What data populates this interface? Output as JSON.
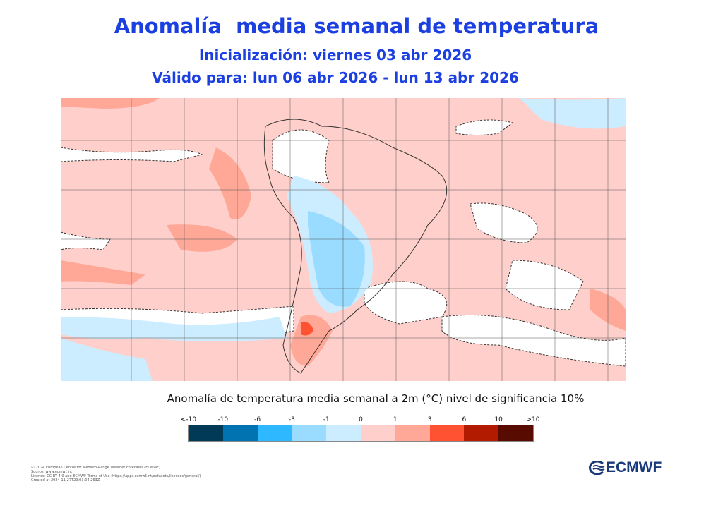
{
  "header": {
    "title": "Anomalía  media semanal de temperatura",
    "init": "Inicialización: viernes 03 abr 2026",
    "valid": "Válido para: lun 06 abr 2026 - lun 13 abr 2026"
  },
  "map": {
    "region": "South America",
    "background_anomaly_color": "#ffd0cb"
  },
  "colorbar": {
    "title": "Anomalía de temperatura media semanal a 2m (°C) nivel de significancia 10%",
    "ticks": [
      "<-10",
      "-10",
      "-6",
      "-3",
      "-1",
      "0",
      "1",
      "3",
      "6",
      "10",
      ">10"
    ],
    "colors": [
      "#003a57",
      "#0073b0",
      "#2eb8ff",
      "#99dcff",
      "#ccecff",
      "#ffd0cb",
      "#ffa898",
      "#ff5233",
      "#b31b00",
      "#580b00"
    ]
  },
  "footer": {
    "lines": [
      "© 2024 European Centre for Medium-Range Weather Forecasts (ECMWF)",
      "Source: www.ecmwf.int",
      "Licence: CC BY 4.0 and ECMWF Terms of Use (https://apps.ecmwf.int/datasets/licences/general/)",
      "Created at 2024-11-27T20:03:04.263Z"
    ],
    "logo": "ECMWF"
  }
}
